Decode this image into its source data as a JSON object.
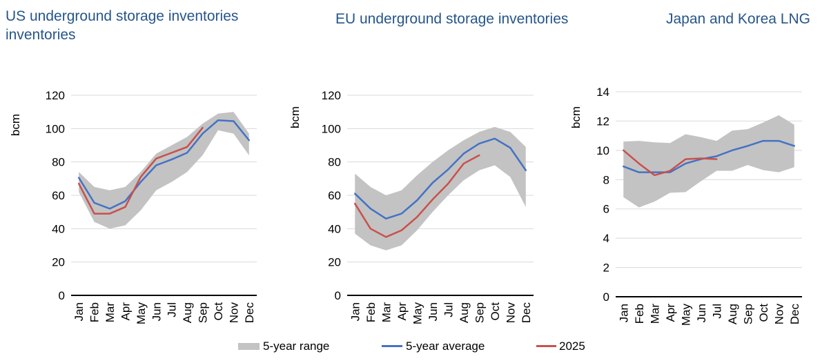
{
  "colors": {
    "band": "#C3C3C3",
    "average": "#4472C4",
    "y2025": "#C9504B",
    "grid": "#D9D9D9",
    "axis": "#000000",
    "title": "#26558B",
    "tick_text": "#000000"
  },
  "legend": {
    "position": "bottom-center",
    "items": [
      {
        "label": "5-year range",
        "type": "band",
        "color_key": "band"
      },
      {
        "label": "5-year average",
        "type": "line",
        "color_key": "average"
      },
      {
        "label": "2025",
        "type": "line",
        "color_key": "y2025"
      }
    ]
  },
  "chart_data": [
    {
      "type": "line",
      "title_lines": [
        "US underground storage inventories",
        "inventories"
      ],
      "ylabel": "bcm",
      "xlabel": "",
      "ylim": [
        0,
        120
      ],
      "yticks": [
        0,
        20,
        40,
        60,
        80,
        100,
        120
      ],
      "grid": "horizontal",
      "categories": [
        "Jan",
        "Feb",
        "Mar",
        "Apr",
        "May",
        "Jun",
        "Jul",
        "Aug",
        "Sep",
        "Oct",
        "Nov",
        "Dec"
      ],
      "series": [
        {
          "name": "5-year range",
          "type": "band",
          "low": [
            62,
            44,
            40,
            42,
            51,
            63,
            68,
            74,
            84,
            99,
            97,
            84
          ],
          "high": [
            74,
            65,
            63,
            65,
            74,
            85,
            90,
            95,
            103,
            109,
            110,
            97
          ]
        },
        {
          "name": "5-year average",
          "type": "line",
          "values": [
            70.5,
            55.5,
            52,
            56.5,
            68,
            78,
            81.5,
            85.5,
            97,
            105,
            104.5,
            93
          ]
        },
        {
          "name": "2025",
          "type": "line",
          "values": [
            67,
            49,
            49,
            53,
            71,
            82,
            85.5,
            89,
            100.5
          ]
        }
      ]
    },
    {
      "type": "line",
      "title_lines": [
        "EU underground storage inventories"
      ],
      "ylabel": "bcm",
      "xlabel": "",
      "ylim": [
        0,
        120
      ],
      "yticks": [
        0,
        20,
        40,
        60,
        80,
        100,
        120
      ],
      "grid": "horizontal",
      "categories": [
        "Jan",
        "Feb",
        "Mar",
        "Apr",
        "May",
        "Jun",
        "Jul",
        "Aug",
        "Sep",
        "Oct",
        "Nov",
        "Dec"
      ],
      "series": [
        {
          "name": "5-year range",
          "type": "band",
          "low": [
            37,
            30,
            27,
            30,
            39,
            50,
            60,
            69,
            75,
            78,
            71,
            53
          ],
          "high": [
            73,
            65,
            60,
            63,
            72,
            80,
            87,
            93,
            98,
            101,
            98,
            89
          ]
        },
        {
          "name": "5-year average",
          "type": "line",
          "values": [
            61,
            52,
            46,
            49,
            57,
            67.5,
            75.5,
            85,
            91,
            94,
            88.5,
            75
          ]
        },
        {
          "name": "2025",
          "type": "line",
          "values": [
            55,
            40,
            35,
            39,
            47,
            57.5,
            67,
            79,
            84
          ]
        }
      ]
    },
    {
      "type": "line",
      "title_lines": [
        "Japan and Korea LNG"
      ],
      "ylabel": "bcm",
      "xlabel": "",
      "ylim": [
        0,
        14
      ],
      "yticks": [
        0,
        2,
        4,
        6,
        8,
        10,
        12,
        14
      ],
      "grid": "horizontal",
      "categories": [
        "Jan",
        "Feb",
        "Mar",
        "Apr",
        "May",
        "Jun",
        "Jul",
        "Aug",
        "Sep",
        "Oct",
        "Nov",
        "Dec"
      ],
      "series": [
        {
          "name": "5-year range",
          "type": "band",
          "low": [
            6.8,
            6.1,
            6.5,
            7.1,
            7.15,
            7.9,
            8.6,
            8.6,
            9.0,
            8.65,
            8.5,
            8.85
          ],
          "high": [
            10.6,
            10.65,
            10.55,
            10.5,
            11.1,
            10.9,
            10.65,
            11.35,
            11.45,
            11.9,
            12.4,
            11.75
          ]
        },
        {
          "name": "5-year average",
          "type": "line",
          "values": [
            8.9,
            8.5,
            8.5,
            8.5,
            9.1,
            9.4,
            9.6,
            10.0,
            10.3,
            10.65,
            10.65,
            10.3
          ]
        },
        {
          "name": "2025",
          "type": "line",
          "values": [
            10.0,
            9.1,
            8.3,
            8.6,
            9.4,
            9.45,
            9.4
          ]
        }
      ]
    }
  ]
}
